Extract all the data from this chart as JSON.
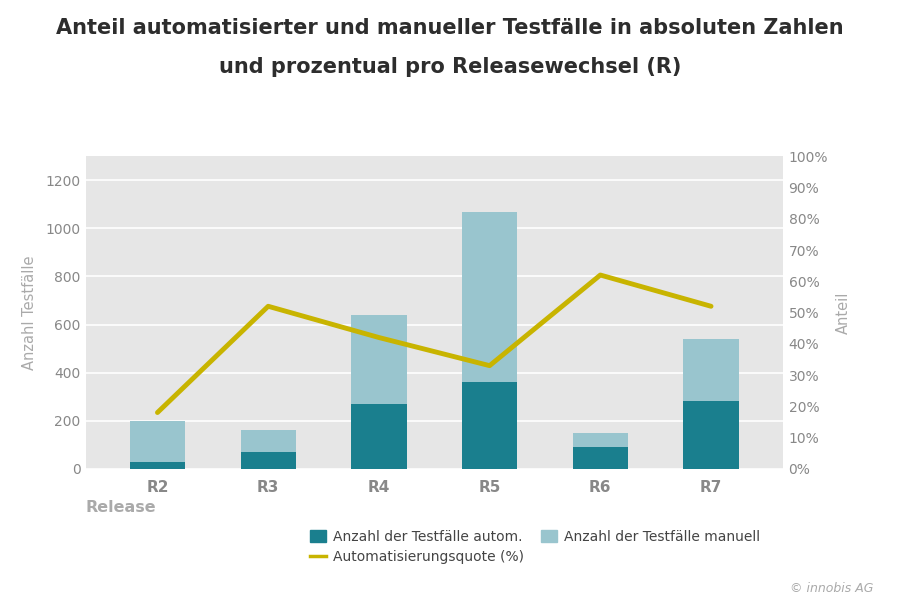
{
  "categories": [
    "R2",
    "R3",
    "R4",
    "R5",
    "R6",
    "R7"
  ],
  "auto_values": [
    30,
    70,
    270,
    360,
    90,
    280
  ],
  "manual_values": [
    170,
    90,
    370,
    710,
    60,
    260
  ],
  "automation_rate": [
    0.18,
    0.52,
    0.42,
    0.33,
    0.62,
    0.52
  ],
  "color_auto": "#1a7f8e",
  "color_manual": "#99c5ce",
  "color_line": "#c8b400",
  "title_line1": "Anteil automatisierter und manueller Testfälle in absoluten Zahlen",
  "title_line2": "und prozentual pro Releasewechsel (R)",
  "ylabel_left": "Anzahl Testfälle",
  "ylabel_right": "Anteil",
  "xlabel": "Release",
  "legend_auto": "Anzahl der Testfälle autom.",
  "legend_manual": "Anzahl der Testfälle manuell",
  "legend_line": "Automatisierungsquote (%)",
  "ylim_left": [
    0,
    1300
  ],
  "ylim_right": [
    0,
    1.0
  ],
  "yticks_left": [
    0,
    200,
    400,
    600,
    800,
    1000,
    1200
  ],
  "yticks_right": [
    0.0,
    0.1,
    0.2,
    0.3,
    0.4,
    0.5,
    0.6,
    0.7,
    0.8,
    0.9,
    1.0
  ],
  "ytick_right_labels": [
    "0%",
    "10%",
    "20%",
    "30%",
    "40%",
    "50%",
    "60%",
    "70%",
    "80%",
    "90%",
    "100%"
  ],
  "background_color": "#e6e6e6",
  "figure_bg": "#ffffff",
  "grid_color": "#ffffff",
  "annotation": "© innobis AG",
  "title_fontsize": 15,
  "axis_label_fontsize": 10.5,
  "tick_fontsize": 10,
  "legend_fontsize": 10
}
